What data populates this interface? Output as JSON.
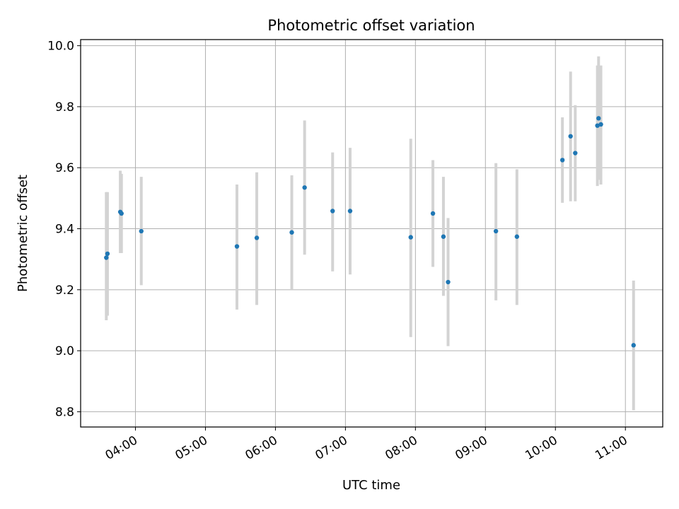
{
  "chart_data": {
    "type": "scatter",
    "title": "Photometric offset variation",
    "xlabel": "UTC time",
    "ylabel": "Photometric offset",
    "x_unit": "UTC time (HH:MM)",
    "xlim": [
      "03:13",
      "11:32"
    ],
    "ylim": [
      8.75,
      10.02
    ],
    "xticks": [
      "04:00",
      "05:00",
      "06:00",
      "07:00",
      "08:00",
      "09:00",
      "10:00",
      "11:00"
    ],
    "yticks": [
      "8.8",
      "9.0",
      "9.2",
      "9.4",
      "9.6",
      "9.8",
      "10.0"
    ],
    "grid": true,
    "series": [
      {
        "marker_color": "#1f77b4",
        "errorbar_color": "#d3d3d3",
        "points": [
          {
            "t": "03:35",
            "y": 9.305,
            "ylo": 9.1,
            "yhi": 9.52
          },
          {
            "t": "03:36",
            "y": 9.318,
            "ylo": 9.115,
            "yhi": 9.52
          },
          {
            "t": "03:47",
            "y": 9.455,
            "ylo": 9.32,
            "yhi": 9.59
          },
          {
            "t": "03:48",
            "y": 9.45,
            "ylo": 9.32,
            "yhi": 9.58
          },
          {
            "t": "04:05",
            "y": 9.392,
            "ylo": 9.215,
            "yhi": 9.57
          },
          {
            "t": "05:27",
            "y": 9.342,
            "ylo": 9.135,
            "yhi": 9.545
          },
          {
            "t": "05:44",
            "y": 9.37,
            "ylo": 9.15,
            "yhi": 9.585
          },
          {
            "t": "06:14",
            "y": 9.388,
            "ylo": 9.2,
            "yhi": 9.575
          },
          {
            "t": "06:25",
            "y": 9.535,
            "ylo": 9.315,
            "yhi": 9.755
          },
          {
            "t": "06:49",
            "y": 9.458,
            "ylo": 9.26,
            "yhi": 9.65
          },
          {
            "t": "07:04",
            "y": 9.458,
            "ylo": 9.25,
            "yhi": 9.665
          },
          {
            "t": "07:56",
            "y": 9.372,
            "ylo": 9.045,
            "yhi": 9.695
          },
          {
            "t": "08:15",
            "y": 9.45,
            "ylo": 9.275,
            "yhi": 9.625
          },
          {
            "t": "08:24",
            "y": 9.374,
            "ylo": 9.18,
            "yhi": 9.57
          },
          {
            "t": "08:28",
            "y": 9.225,
            "ylo": 9.015,
            "yhi": 9.435
          },
          {
            "t": "09:09",
            "y": 9.392,
            "ylo": 9.165,
            "yhi": 9.615
          },
          {
            "t": "09:27",
            "y": 9.374,
            "ylo": 9.15,
            "yhi": 9.595
          },
          {
            "t": "10:06",
            "y": 9.625,
            "ylo": 9.485,
            "yhi": 9.765
          },
          {
            "t": "10:13",
            "y": 9.703,
            "ylo": 9.49,
            "yhi": 9.915
          },
          {
            "t": "10:17",
            "y": 9.648,
            "ylo": 9.49,
            "yhi": 9.805
          },
          {
            "t": "10:36",
            "y": 9.738,
            "ylo": 9.54,
            "yhi": 9.935
          },
          {
            "t": "10:37",
            "y": 9.762,
            "ylo": 9.56,
            "yhi": 9.965
          },
          {
            "t": "10:39",
            "y": 9.742,
            "ylo": 9.545,
            "yhi": 9.935
          },
          {
            "t": "11:07",
            "y": 9.018,
            "ylo": 8.805,
            "yhi": 9.23
          }
        ]
      }
    ]
  }
}
